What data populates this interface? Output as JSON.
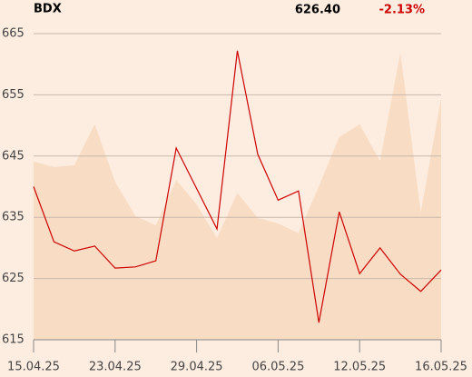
{
  "chart_data": {
    "type": "line",
    "title": "BDX",
    "last_price": "626.40",
    "change": "-2.13%",
    "change_color": "#cc0000",
    "categories": [
      "15.04.25",
      null,
      null,
      null,
      "23.04.25",
      null,
      null,
      null,
      "29.04.25",
      null,
      null,
      null,
      "06.05.25",
      null,
      null,
      null,
      "12.05.25",
      null,
      null,
      null,
      "16.05.25"
    ],
    "series": [
      {
        "color": "#f9dcc4",
        "style": "area",
        "values": [
          644.1,
          643.2,
          643.5,
          650.2,
          640.8,
          635.2,
          633.7,
          641.1,
          637.1,
          631.6,
          639,
          634.9,
          634,
          632.4,
          640.1,
          648.1,
          650.2,
          644.2,
          661.9,
          635.8,
          654.5
        ]
      },
      {
        "color": "#cc0000",
        "style": "line",
        "values": [
          640,
          631,
          629.5,
          630.3,
          626.7,
          626.9,
          627.9,
          646.3,
          639.7,
          633.1,
          662.2,
          645.3,
          637.8,
          639.3,
          617.8,
          635.9,
          625.8,
          630,
          625.7,
          622.9,
          626.4
        ]
      }
    ],
    "ylim": [
      615,
      665
    ],
    "yticks": [
      615,
      625,
      635,
      645,
      655,
      665
    ],
    "grid": true
  }
}
